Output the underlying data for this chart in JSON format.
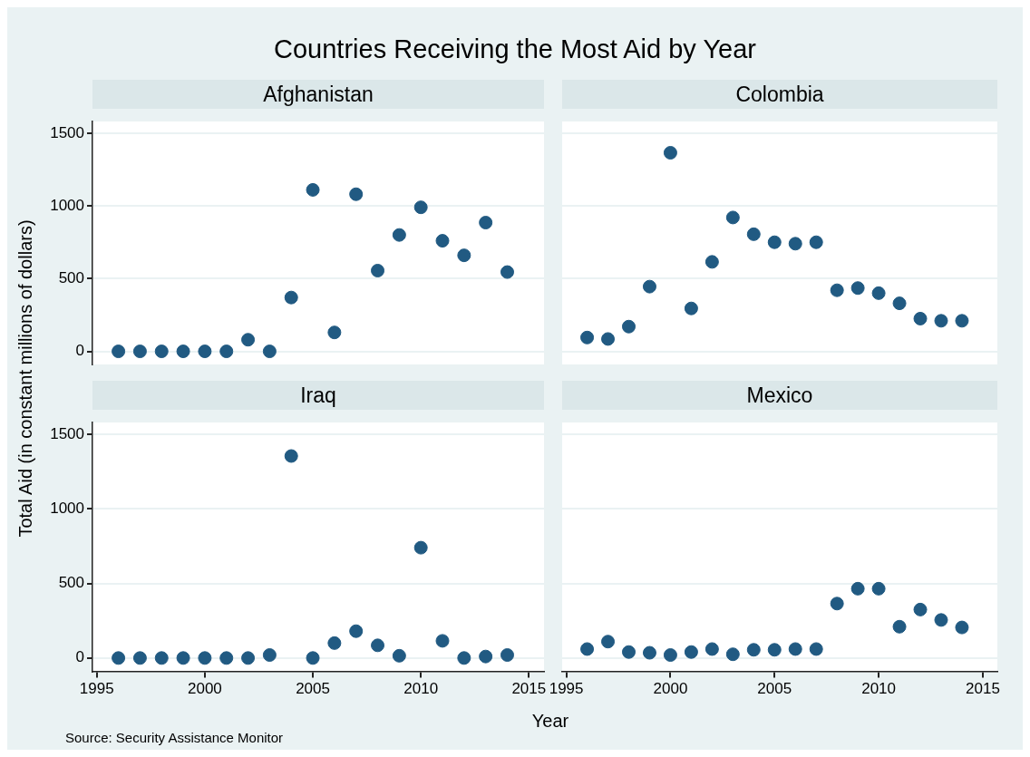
{
  "chart_data": [
    {
      "type": "scatter",
      "title": "Afghanistan",
      "annotations": [
        "Countries Receiving the Most Aid by Year"
      ],
      "ylabel": "Total Aid (in constant millions of dollars)",
      "x": [
        1996,
        1997,
        1998,
        1999,
        2000,
        2001,
        2002,
        2003,
        2004,
        2005,
        2006,
        2007,
        2008,
        2009,
        2010,
        2011,
        2012,
        2013,
        2014
      ],
      "values": [
        0,
        0,
        0,
        0,
        0,
        0,
        80,
        0,
        370,
        1110,
        130,
        1080,
        555,
        800,
        990,
        760,
        660,
        885,
        545
      ],
      "color": "#215a82",
      "marker": "circle",
      "xlim": [
        1994.8,
        2015.7
      ],
      "ylim": [
        -90,
        1580
      ],
      "xticks": [
        1995,
        2000,
        2005,
        2010,
        2015
      ],
      "yticks": [
        0,
        500,
        1000,
        1500
      ],
      "grid": "y",
      "tick_labels": "y"
    },
    {
      "type": "scatter",
      "title": "Colombia",
      "x": [
        1996,
        1997,
        1998,
        1999,
        2000,
        2001,
        2002,
        2003,
        2004,
        2005,
        2006,
        2007,
        2008,
        2009,
        2010,
        2011,
        2012,
        2013,
        2014
      ],
      "values": [
        95,
        85,
        170,
        445,
        1365,
        295,
        615,
        920,
        805,
        750,
        740,
        750,
        420,
        435,
        400,
        330,
        225,
        210,
        210
      ],
      "color": "#215a82",
      "marker": "circle",
      "xlim": [
        1994.8,
        2015.7
      ],
      "ylim": [
        -90,
        1580
      ],
      "xticks": [
        1995,
        2000,
        2005,
        2010,
        2015
      ],
      "yticks": [
        0,
        500,
        1000,
        1500
      ],
      "grid": "y",
      "tick_labels": false
    },
    {
      "type": "scatter",
      "title": "Iraq",
      "annotations": [
        "Source: Security Assistance Monitor"
      ],
      "xlabel": "Year",
      "x": [
        1996,
        1997,
        1998,
        1999,
        2000,
        2001,
        2002,
        2003,
        2004,
        2005,
        2006,
        2007,
        2008,
        2009,
        2010,
        2011,
        2012,
        2013,
        2014
      ],
      "values": [
        0,
        0,
        0,
        0,
        0,
        0,
        0,
        20,
        1355,
        0,
        100,
        180,
        85,
        15,
        740,
        115,
        0,
        10,
        20
      ],
      "color": "#215a82",
      "marker": "circle",
      "xlim": [
        1994.8,
        2015.7
      ],
      "ylim": [
        -90,
        1580
      ],
      "xticks": [
        1995,
        2000,
        2005,
        2010,
        2015
      ],
      "yticks": [
        0,
        500,
        1000,
        1500
      ],
      "grid": "y"
    },
    {
      "type": "scatter",
      "title": "Mexico",
      "x": [
        1996,
        1997,
        1998,
        1999,
        2000,
        2001,
        2002,
        2003,
        2004,
        2005,
        2006,
        2007,
        2008,
        2009,
        2010,
        2011,
        2012,
        2013,
        2014
      ],
      "values": [
        60,
        110,
        40,
        35,
        20,
        40,
        60,
        25,
        55,
        55,
        60,
        60,
        365,
        465,
        465,
        210,
        325,
        255,
        205
      ],
      "color": "#215a82",
      "marker": "circle",
      "xlim": [
        1994.8,
        2015.7
      ],
      "ylim": [
        -90,
        1580
      ],
      "xticks": [
        1995,
        2000,
        2005,
        2010,
        2015
      ],
      "yticks": [
        0,
        500,
        1000,
        1500
      ],
      "grid": "y",
      "tick_labels": "x"
    }
  ]
}
